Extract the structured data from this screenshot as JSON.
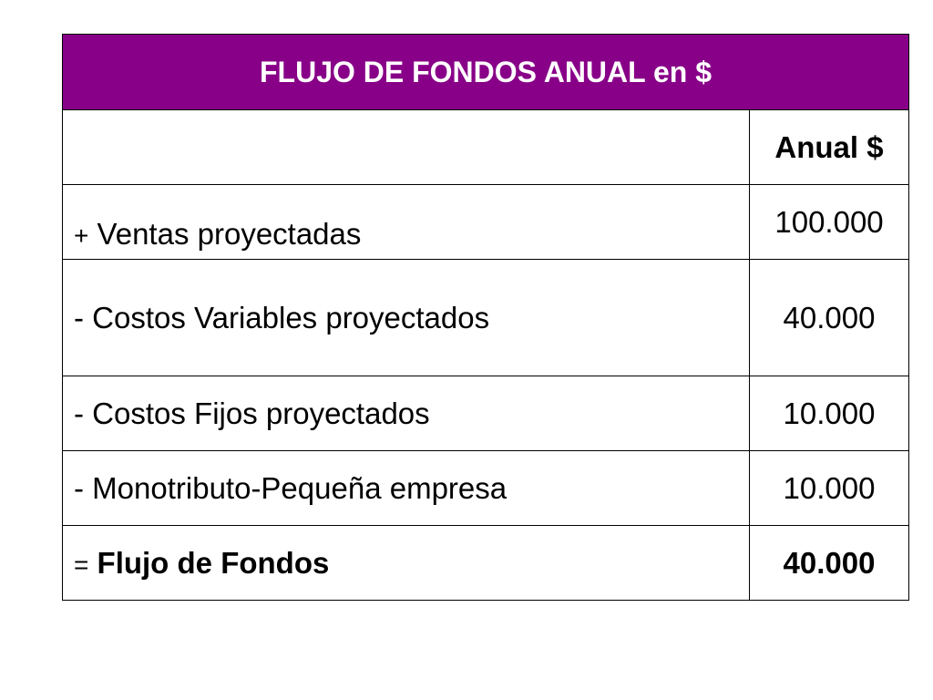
{
  "table": {
    "title": "FLUJO DE FONDOS ANUAL  en $",
    "column_header": "Anual $",
    "rows": [
      {
        "sign": "+",
        "label": "Ventas proyectadas",
        "value": "100.000"
      },
      {
        "sign": "-",
        "label": "Costos Variables proyectados",
        "value": "40.000"
      },
      {
        "sign": "-",
        "label": "Costos Fijos proyectados",
        "value": "10.000"
      },
      {
        "sign": "-",
        "label": "Monotributo-Pequeña empresa",
        "value": "10.000"
      }
    ],
    "total": {
      "sign": "=",
      "label": "Flujo de Fondos",
      "value": "40.000"
    }
  },
  "colors": {
    "header_background": "#880088",
    "header_text": "#ffffff"
  }
}
